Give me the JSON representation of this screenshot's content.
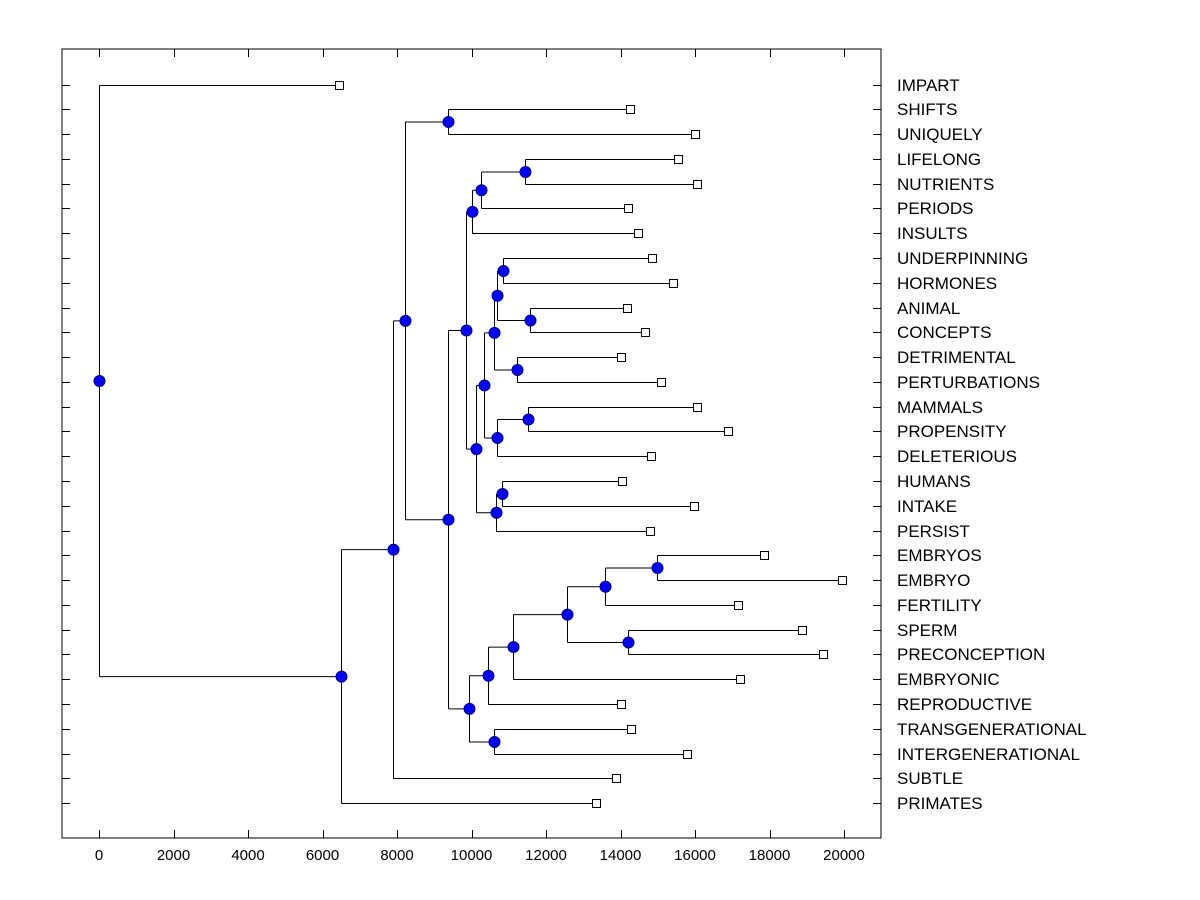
{
  "chart_data": {
    "type": "dendrogram",
    "title": "",
    "xlabel": "",
    "ylabel": "",
    "xlim": [
      -1000,
      21000
    ],
    "xticks": [
      0,
      2000,
      4000,
      6000,
      8000,
      10000,
      12000,
      14000,
      16000,
      18000,
      20000
    ],
    "xtick_labels": [
      "0",
      "2000",
      "4000",
      "6000",
      "8000",
      "10000",
      "12000",
      "14000",
      "16000",
      "18000",
      "20000"
    ],
    "grid": false,
    "legend": "none",
    "colors": {
      "node": "#0000ff",
      "leaf": "#ffffff",
      "line": "#000000"
    },
    "leaves": [
      {
        "label": "IMPART",
        "value": 6470
      },
      {
        "label": "SHIFTS",
        "value": 14280
      },
      {
        "label": "UNIQUELY",
        "value": 16030
      },
      {
        "label": "LIFELONG",
        "value": 15570
      },
      {
        "label": "NUTRIENTS",
        "value": 16080
      },
      {
        "label": "PERIODS",
        "value": 14230
      },
      {
        "label": "INSULTS",
        "value": 14500
      },
      {
        "label": "UNDERPINNING",
        "value": 14870
      },
      {
        "label": "HORMONES",
        "value": 15440
      },
      {
        "label": "ANIMAL",
        "value": 14200
      },
      {
        "label": "CONCEPTS",
        "value": 14690
      },
      {
        "label": "DETRIMENTAL",
        "value": 14040
      },
      {
        "label": "PERTURBATIONS",
        "value": 15110
      },
      {
        "label": "MAMMALS",
        "value": 16080
      },
      {
        "label": "PROPENSITY",
        "value": 16910
      },
      {
        "label": "DELETERIOUS",
        "value": 14850
      },
      {
        "label": "HUMANS",
        "value": 14070
      },
      {
        "label": "INTAKE",
        "value": 16000
      },
      {
        "label": "PERSIST",
        "value": 14820
      },
      {
        "label": "EMBRYOS",
        "value": 17880
      },
      {
        "label": "EMBRYO",
        "value": 19970
      },
      {
        "label": "FERTILITY",
        "value": 17180
      },
      {
        "label": "SPERM",
        "value": 18900
      },
      {
        "label": "PRECONCEPTION",
        "value": 19460
      },
      {
        "label": "EMBRYONIC",
        "value": 17240
      },
      {
        "label": "REPRODUCTIVE",
        "value": 14040
      },
      {
        "label": "TRANSGENERATIONAL",
        "value": 14310
      },
      {
        "label": "INTERGENERATIONAL",
        "value": 15810
      },
      {
        "label": "SUBTLE",
        "value": 13910
      },
      {
        "label": "PRIMATES",
        "value": 13370
      }
    ],
    "nodes": [
      {
        "id": "n_lifelong_nutrients",
        "value": 11440,
        "children": [
          "LIFELONG",
          "NUTRIENTS"
        ]
      },
      {
        "id": "n_shifts_uniquely",
        "value": 9370,
        "children": [
          "SHIFTS",
          "UNIQUELY"
        ]
      },
      {
        "id": "n_ln_periods",
        "value": 10260,
        "children": [
          "n_lifelong_nutrients",
          "PERIODS"
        ]
      },
      {
        "id": "n_lnp_insults",
        "value": 10010,
        "children": [
          "n_ln_periods",
          "INSULTS"
        ]
      },
      {
        "id": "n_underpinning_hormones",
        "value": 10850,
        "children": [
          "UNDERPINNING",
          "HORMONES"
        ]
      },
      {
        "id": "n_animal_concepts",
        "value": 11570,
        "children": [
          "ANIMAL",
          "CONCEPTS"
        ]
      },
      {
        "id": "n_uh_ac",
        "value": 10690,
        "children": [
          "n_underpinning_hormones",
          "n_animal_concepts"
        ]
      },
      {
        "id": "n_detrimental_perturbations",
        "value": 11220,
        "children": [
          "DETRIMENTAL",
          "PERTURBATIONS"
        ]
      },
      {
        "id": "n_uhac_dp",
        "value": 10600,
        "children": [
          "n_uh_ac",
          "n_detrimental_perturbations"
        ]
      },
      {
        "id": "n_mammals_propensity",
        "value": 11520,
        "children": [
          "MAMMALS",
          "PROPENSITY"
        ]
      },
      {
        "id": "n_mp_deleterious",
        "value": 10690,
        "children": [
          "n_mammals_propensity",
          "DELETERIOUS"
        ]
      },
      {
        "id": "n_group_a",
        "value": 10340,
        "children": [
          "n_uhac_dp",
          "n_mp_deleterious"
        ]
      },
      {
        "id": "n_humans_intake",
        "value": 10820,
        "children": [
          "HUMANS",
          "INTAKE"
        ]
      },
      {
        "id": "n_hi_persist",
        "value": 10660,
        "children": [
          "n_humans_intake",
          "PERSIST"
        ]
      },
      {
        "id": "n_group_b",
        "value": 10120,
        "children": [
          "n_group_a",
          "n_hi_persist"
        ]
      },
      {
        "id": "n_group_c",
        "value": 9850,
        "children": [
          "n_lnp_insults",
          "n_group_b"
        ]
      },
      {
        "id": "n_embryos_embryo",
        "value": 14980,
        "children": [
          "EMBRYOS",
          "EMBRYO"
        ]
      },
      {
        "id": "n_ee_fertility",
        "value": 13580,
        "children": [
          "n_embryos_embryo",
          "FERTILITY"
        ]
      },
      {
        "id": "n_sperm_preconception",
        "value": 14200,
        "children": [
          "SPERM",
          "PRECONCEPTION"
        ]
      },
      {
        "id": "n_eef_sp",
        "value": 12560,
        "children": [
          "n_ee_fertility",
          "n_sperm_preconception"
        ]
      },
      {
        "id": "n_eefsp_embryonic",
        "value": 11110,
        "children": [
          "n_eef_sp",
          "EMBRYONIC"
        ]
      },
      {
        "id": "n_e_reproductive",
        "value": 10440,
        "children": [
          "n_eefsp_embryonic",
          "REPRODUCTIVE"
        ]
      },
      {
        "id": "n_trans_inter",
        "value": 10600,
        "children": [
          "TRANSGENERATIONAL",
          "INTERGENERATIONAL"
        ]
      },
      {
        "id": "n_group_d",
        "value": 9930,
        "children": [
          "n_e_reproductive",
          "n_trans_inter"
        ]
      },
      {
        "id": "n_group_e",
        "value": 9370,
        "children": [
          "n_group_c",
          "n_group_d"
        ]
      },
      {
        "id": "n_group_f",
        "value": 8220,
        "children": [
          "n_shifts_uniquely",
          "n_group_e"
        ]
      },
      {
        "id": "n_group_g",
        "value": 7890,
        "children": [
          "n_group_f",
          "SUBTLE"
        ]
      },
      {
        "id": "n_group_h",
        "value": 6500,
        "children": [
          "n_group_g",
          "PRIMATES"
        ]
      },
      {
        "id": "n_root",
        "value": 0,
        "children": [
          "IMPART",
          "n_group_h"
        ]
      }
    ]
  }
}
